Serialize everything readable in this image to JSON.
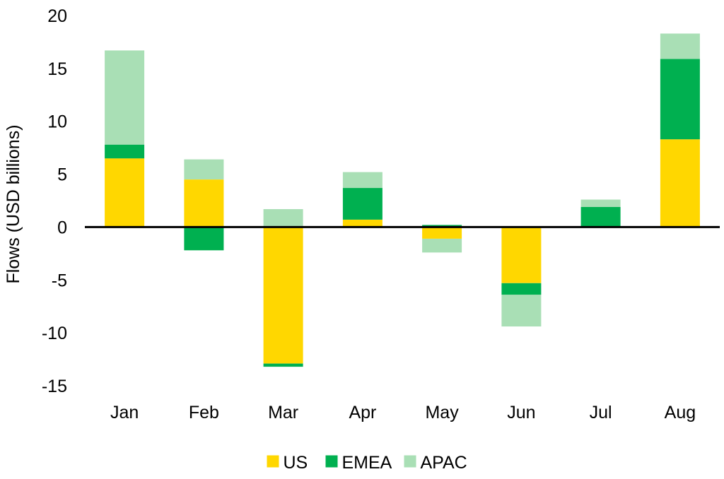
{
  "chart_data": {
    "type": "bar",
    "stacked": true,
    "title": "",
    "xlabel": "",
    "ylabel": "Flows (USD billions)",
    "ylim": [
      -15,
      20
    ],
    "yticks": [
      20,
      15,
      10,
      5,
      0,
      -5,
      -10,
      -15
    ],
    "grid": false,
    "legend_position": "bottom",
    "categories": [
      "Jan",
      "Feb",
      "Mar",
      "Apr",
      "May",
      "Jun",
      "Jul",
      "Aug"
    ],
    "series": [
      {
        "name": "US",
        "color": "#FFD700",
        "values": [
          6.5,
          4.5,
          -12.9,
          0.7,
          -1.1,
          -5.3,
          0.0,
          8.3
        ]
      },
      {
        "name": "EMEA",
        "color": "#00B050",
        "values": [
          1.3,
          -2.2,
          -0.3,
          3.0,
          0.2,
          -1.1,
          1.9,
          7.6
        ]
      },
      {
        "name": "APAC",
        "color": "#A9DFB5",
        "values": [
          8.9,
          1.9,
          1.7,
          1.5,
          -1.3,
          -3.0,
          0.7,
          2.4
        ]
      }
    ]
  }
}
